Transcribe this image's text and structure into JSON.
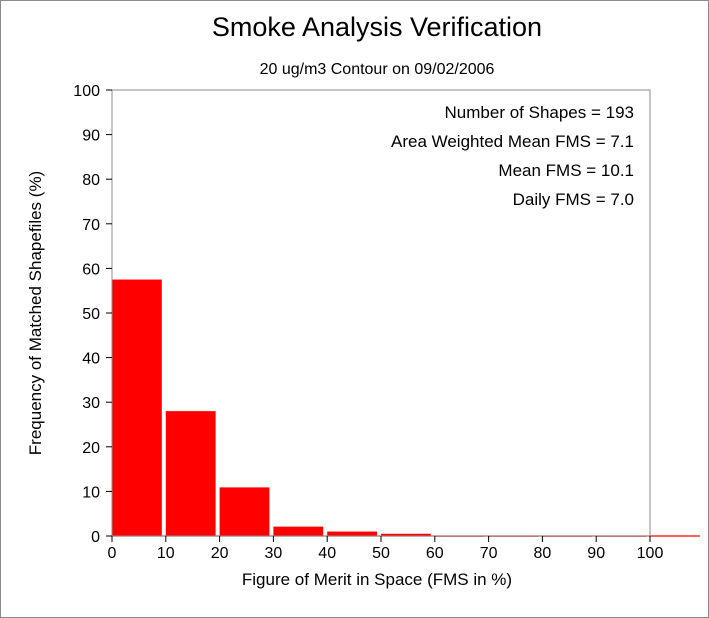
{
  "chart_data": {
    "type": "bar",
    "title": "Smoke Analysis Verification",
    "subtitle": "20 ug/m3 Contour on 09/02/2006",
    "xlabel": "Figure of Merit in Space (FMS in %)",
    "ylabel": "Frequency of Matched Shapefiles (%)",
    "xlim": [
      0,
      100
    ],
    "ylim": [
      0,
      100
    ],
    "x_ticks": [
      "0",
      "10",
      "20",
      "30",
      "40",
      "50",
      "60",
      "70",
      "80",
      "90",
      "100"
    ],
    "y_ticks": [
      "0",
      "10",
      "20",
      "30",
      "40",
      "50",
      "60",
      "70",
      "80",
      "90",
      "100"
    ],
    "bins": [
      {
        "from": 0,
        "to": 10,
        "value": 57.5
      },
      {
        "from": 10,
        "to": 20,
        "value": 28.0
      },
      {
        "from": 20,
        "to": 30,
        "value": 10.9
      },
      {
        "from": 30,
        "to": 40,
        "value": 2.1
      },
      {
        "from": 40,
        "to": 50,
        "value": 1.0
      },
      {
        "from": 50,
        "to": 60,
        "value": 0.5
      },
      {
        "from": 60,
        "to": 70,
        "value": 0.1
      },
      {
        "from": 70,
        "to": 80,
        "value": 0.1
      },
      {
        "from": 80,
        "to": 90,
        "value": 0.1
      },
      {
        "from": 90,
        "to": 100,
        "value": 0.1
      }
    ],
    "bar_color": "#ff0000",
    "grid": false,
    "annotations": [
      "Number of Shapes = 193",
      "Area Weighted Mean FMS = 7.1",
      "Mean FMS = 10.1",
      "Daily FMS = 7.0"
    ]
  }
}
